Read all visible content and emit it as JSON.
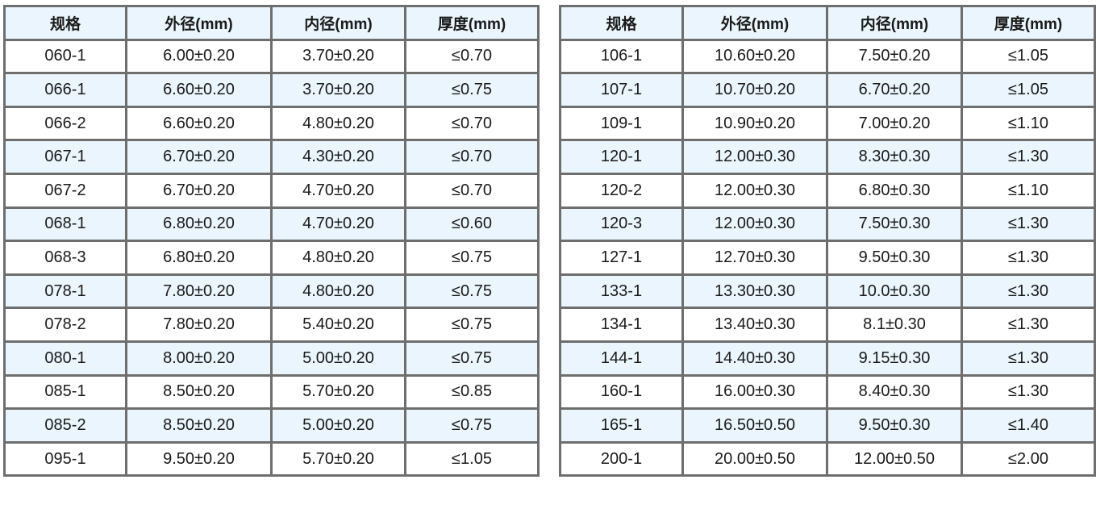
{
  "headers": [
    "规格",
    "外径(mm)",
    "内径(mm)",
    "厚度(mm)"
  ],
  "colors": {
    "header_bg": "#eaf5fd",
    "alt_row_bg": "#eaf5fd",
    "border": "#6e6e6e"
  },
  "left_table": [
    [
      "060-1",
      "6.00±0.20",
      "3.70±0.20",
      "≤0.70"
    ],
    [
      "066-1",
      "6.60±0.20",
      "3.70±0.20",
      "≤0.75"
    ],
    [
      "066-2",
      "6.60±0.20",
      "4.80±0.20",
      "≤0.70"
    ],
    [
      "067-1",
      "6.70±0.20",
      "4.30±0.20",
      "≤0.70"
    ],
    [
      "067-2",
      "6.70±0.20",
      "4.70±0.20",
      "≤0.70"
    ],
    [
      "068-1",
      "6.80±0.20",
      "4.70±0.20",
      "≤0.60"
    ],
    [
      "068-3",
      "6.80±0.20",
      "4.80±0.20",
      "≤0.75"
    ],
    [
      "078-1",
      "7.80±0.20",
      "4.80±0.20",
      "≤0.75"
    ],
    [
      "078-2",
      "7.80±0.20",
      "5.40±0.20",
      "≤0.75"
    ],
    [
      "080-1",
      "8.00±0.20",
      "5.00±0.20",
      "≤0.75"
    ],
    [
      "085-1",
      "8.50±0.20",
      "5.70±0.20",
      "≤0.85"
    ],
    [
      "085-2",
      "8.50±0.20",
      "5.00±0.20",
      "≤0.75"
    ],
    [
      "095-1",
      "9.50±0.20",
      "5.70±0.20",
      "≤1.05"
    ]
  ],
  "right_table": [
    [
      "106-1",
      "10.60±0.20",
      "7.50±0.20",
      "≤1.05"
    ],
    [
      "107-1",
      "10.70±0.20",
      "6.70±0.20",
      "≤1.05"
    ],
    [
      "109-1",
      "10.90±0.20",
      "7.00±0.20",
      "≤1.10"
    ],
    [
      "120-1",
      "12.00±0.30",
      "8.30±0.30",
      "≤1.30"
    ],
    [
      "120-2",
      "12.00±0.30",
      "6.80±0.30",
      "≤1.10"
    ],
    [
      "120-3",
      "12.00±0.30",
      "7.50±0.30",
      "≤1.30"
    ],
    [
      "127-1",
      "12.70±0.30",
      "9.50±0.30",
      "≤1.30"
    ],
    [
      "133-1",
      "13.30±0.30",
      "10.0±0.30",
      "≤1.30"
    ],
    [
      "134-1",
      "13.40±0.30",
      "8.1±0.30",
      "≤1.30"
    ],
    [
      "144-1",
      "14.40±0.30",
      "9.15±0.30",
      "≤1.30"
    ],
    [
      "160-1",
      "16.00±0.30",
      "8.40±0.30",
      "≤1.30"
    ],
    [
      "165-1",
      "16.50±0.50",
      "9.50±0.30",
      "≤1.40"
    ],
    [
      "200-1",
      "20.00±0.50",
      "12.00±0.50",
      "≤2.00"
    ]
  ]
}
